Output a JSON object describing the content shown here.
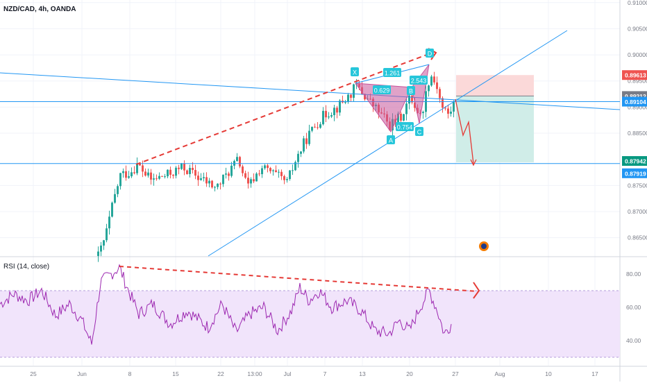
{
  "symbol_title": "NZD/CAD, 4h, OANDA",
  "rsi_title": "RSI (14, close)",
  "colors": {
    "up": "#26a69a",
    "down": "#ef5350",
    "trendline": "#2196f3",
    "dashed": "#e53935",
    "harmonic_fill": "#c7559b",
    "harmonic_label": "#26c6da",
    "rsi_line": "#9c27b0",
    "rsi_band": "#f1e4fb",
    "target_fill": "#d0ede8",
    "stop_fill": "#fbd9d9"
  },
  "chart_data": [
    {
      "type": "candlestick",
      "symbol": "NZD/CAD",
      "timeframe": "4h",
      "broker": "OANDA",
      "ylim": [
        0.8615,
        0.9105
      ],
      "y_ticks": [
        0.865,
        0.87,
        0.875,
        0.885,
        0.89,
        0.895,
        0.9,
        0.905,
        0.91
      ],
      "x_tick_labels": [
        "25",
        "Jun",
        "8",
        "15",
        "22",
        "13:00",
        "Jul",
        "7",
        "13",
        "20",
        "27",
        "Aug",
        "10",
        "17"
      ],
      "price_badges": [
        {
          "value": "0.89613",
          "color": "#ef5350"
        },
        {
          "value": "0.89212",
          "color": "#787b86"
        },
        {
          "value": "0.89104",
          "color": "#2196f3"
        },
        {
          "value": "0.87942",
          "color": "#089981"
        },
        {
          "value": "0.87919",
          "color": "#2196f3"
        }
      ],
      "harmonic_pattern": {
        "points": [
          "X",
          "A",
          "B",
          "C",
          "D"
        ],
        "ratios": [
          "0.629",
          "1.261",
          "0.754",
          "2.543"
        ]
      }
    },
    {
      "type": "line",
      "name": "RSI (14, close)",
      "ylim": [
        25,
        90
      ],
      "y_ticks": [
        40.0,
        60.0,
        80.0
      ],
      "upper_band": 70,
      "lower_band": 30
    }
  ]
}
